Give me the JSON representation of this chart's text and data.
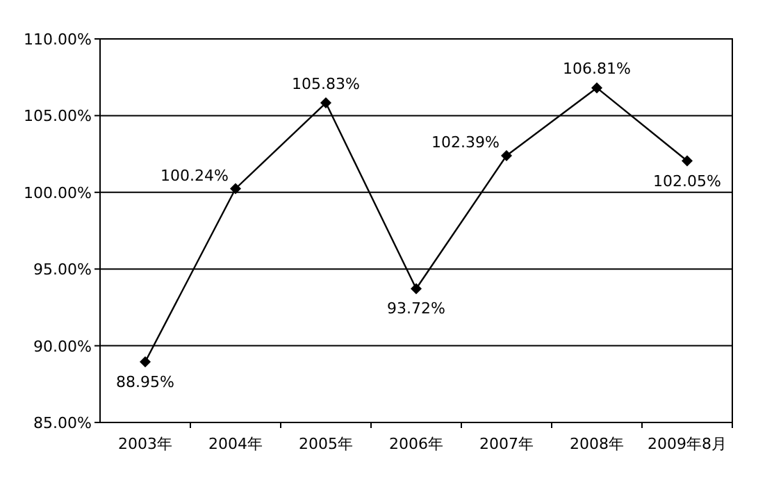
{
  "chart_data": {
    "type": "line",
    "categories": [
      "2003年",
      "2004年",
      "2005年",
      "2006年",
      "2007年",
      "2008年",
      "2009年8月"
    ],
    "series": [
      {
        "color": "#000000",
        "values": [
          88.95,
          100.24,
          105.83,
          93.72,
          102.39,
          106.81,
          102.05
        ],
        "value_labels": [
          "88.95%",
          "100.24%",
          "105.83%",
          "93.72%",
          "102.39%",
          "106.81%",
          "102.05%"
        ]
      }
    ],
    "ylim": [
      85,
      110
    ],
    "yticks": [
      {
        "value": 85,
        "label": "85.00%"
      },
      {
        "value": 90,
        "label": "90.00%"
      },
      {
        "value": 95,
        "label": "95.00%"
      },
      {
        "value": 100,
        "label": "100.00%"
      },
      {
        "value": 105,
        "label": "105.00%"
      },
      {
        "value": 110,
        "label": "110.00%"
      }
    ],
    "grid": "y",
    "marker": "diamond",
    "line_style": "solid"
  }
}
